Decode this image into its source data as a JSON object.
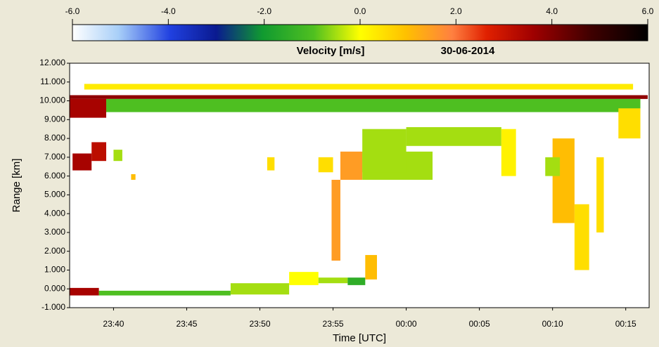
{
  "chart_data": {
    "type": "heatmap",
    "title": "Velocity   [m/s]",
    "subtitle": "30-06-2014",
    "x_label": "Time [UTC]",
    "y_label": "Range [km]",
    "xlim": [
      1417,
      1456.6
    ],
    "ylim": [
      -1,
      12
    ],
    "xticks": [
      {
        "value": 1420,
        "label": "23:40"
      },
      {
        "value": 1425,
        "label": "23:45"
      },
      {
        "value": 1430,
        "label": "23:50"
      },
      {
        "value": 1435,
        "label": "23:55"
      },
      {
        "value": 1440,
        "label": "00:00"
      },
      {
        "value": 1445,
        "label": "00:05"
      },
      {
        "value": 1450,
        "label": "00:10"
      },
      {
        "value": 1455,
        "label": "00:15"
      }
    ],
    "yticks": [
      {
        "value": -1,
        "label": "-1.000"
      },
      {
        "value": 0,
        "label": "0.000"
      },
      {
        "value": 1,
        "label": "1.000"
      },
      {
        "value": 2,
        "label": "2.000"
      },
      {
        "value": 3,
        "label": "3.000"
      },
      {
        "value": 4,
        "label": "4.000"
      },
      {
        "value": 5,
        "label": "5.000"
      },
      {
        "value": 6,
        "label": "6.000"
      },
      {
        "value": 7,
        "label": "7.000"
      },
      {
        "value": 8,
        "label": "8.000"
      },
      {
        "value": 9,
        "label": "9.000"
      },
      {
        "value": 10,
        "label": "10.000"
      },
      {
        "value": 11,
        "label": "11.000"
      },
      {
        "value": 12,
        "label": "12.000"
      }
    ],
    "clim": [
      -6,
      6
    ],
    "cticks": [
      {
        "value": -6,
        "label": "-6.0"
      },
      {
        "value": -4,
        "label": "-4.0"
      },
      {
        "value": -2,
        "label": "-2.0"
      },
      {
        "value": 0,
        "label": "0.0"
      },
      {
        "value": 2,
        "label": "2.0"
      },
      {
        "value": 4,
        "label": "4.0"
      },
      {
        "value": 6,
        "label": "6.0"
      }
    ],
    "cells": {
      "x0": [
        1418,
        1417,
        1417,
        1419.5,
        1454.5,
        1417.2,
        1418.5,
        1435.5,
        1437,
        1437,
        1440,
        1446.5,
        1450,
        1451.5,
        1449.5,
        1453,
        1417,
        1419,
        1428,
        1432,
        1434,
        1436,
        1437.2,
        1434.9,
        1434,
        1430.5,
        1421.2,
        1420
      ],
      "x1": [
        1455.5,
        1456.5,
        1419.5,
        1456,
        1456,
        1418.5,
        1419.5,
        1437,
        1441.8,
        1440,
        1446.5,
        1447.5,
        1451.5,
        1452.5,
        1450.5,
        1453.5,
        1419,
        1428,
        1432,
        1434,
        1436,
        1437.2,
        1438,
        1435.5,
        1435,
        1431,
        1421.5,
        1420.6
      ],
      "y0": [
        10.6,
        10.1,
        9.1,
        9.4,
        8.0,
        6.3,
        6.8,
        5.8,
        5.8,
        6.2,
        7.6,
        6.0,
        3.5,
        1.0,
        6.0,
        3.0,
        -0.35,
        -0.35,
        -0.3,
        0.2,
        0.3,
        0.2,
        0.5,
        1.5,
        6.2,
        6.3,
        5.8,
        6.8
      ],
      "y1": [
        10.9,
        10.3,
        10.1,
        10.1,
        9.6,
        7.2,
        7.8,
        7.3,
        7.3,
        8.5,
        8.6,
        8.5,
        8.0,
        4.5,
        7.0,
        7.0,
        0.05,
        -0.1,
        0.3,
        0.9,
        0.6,
        0.6,
        1.8,
        5.8,
        7.0,
        7.0,
        6.1,
        7.4
      ],
      "v": [
        0.3,
        3.8,
        3.5,
        -1.0,
        0.5,
        3.5,
        3.2,
        1.5,
        -0.5,
        -0.5,
        -0.5,
        0.2,
        1.0,
        0.5,
        -0.5,
        0.5,
        3.5,
        -1.0,
        -0.5,
        0,
        -0.5,
        -1.5,
        1.0,
        1.5,
        0.5,
        0.5,
        1.0,
        -0.5
      ]
    }
  }
}
